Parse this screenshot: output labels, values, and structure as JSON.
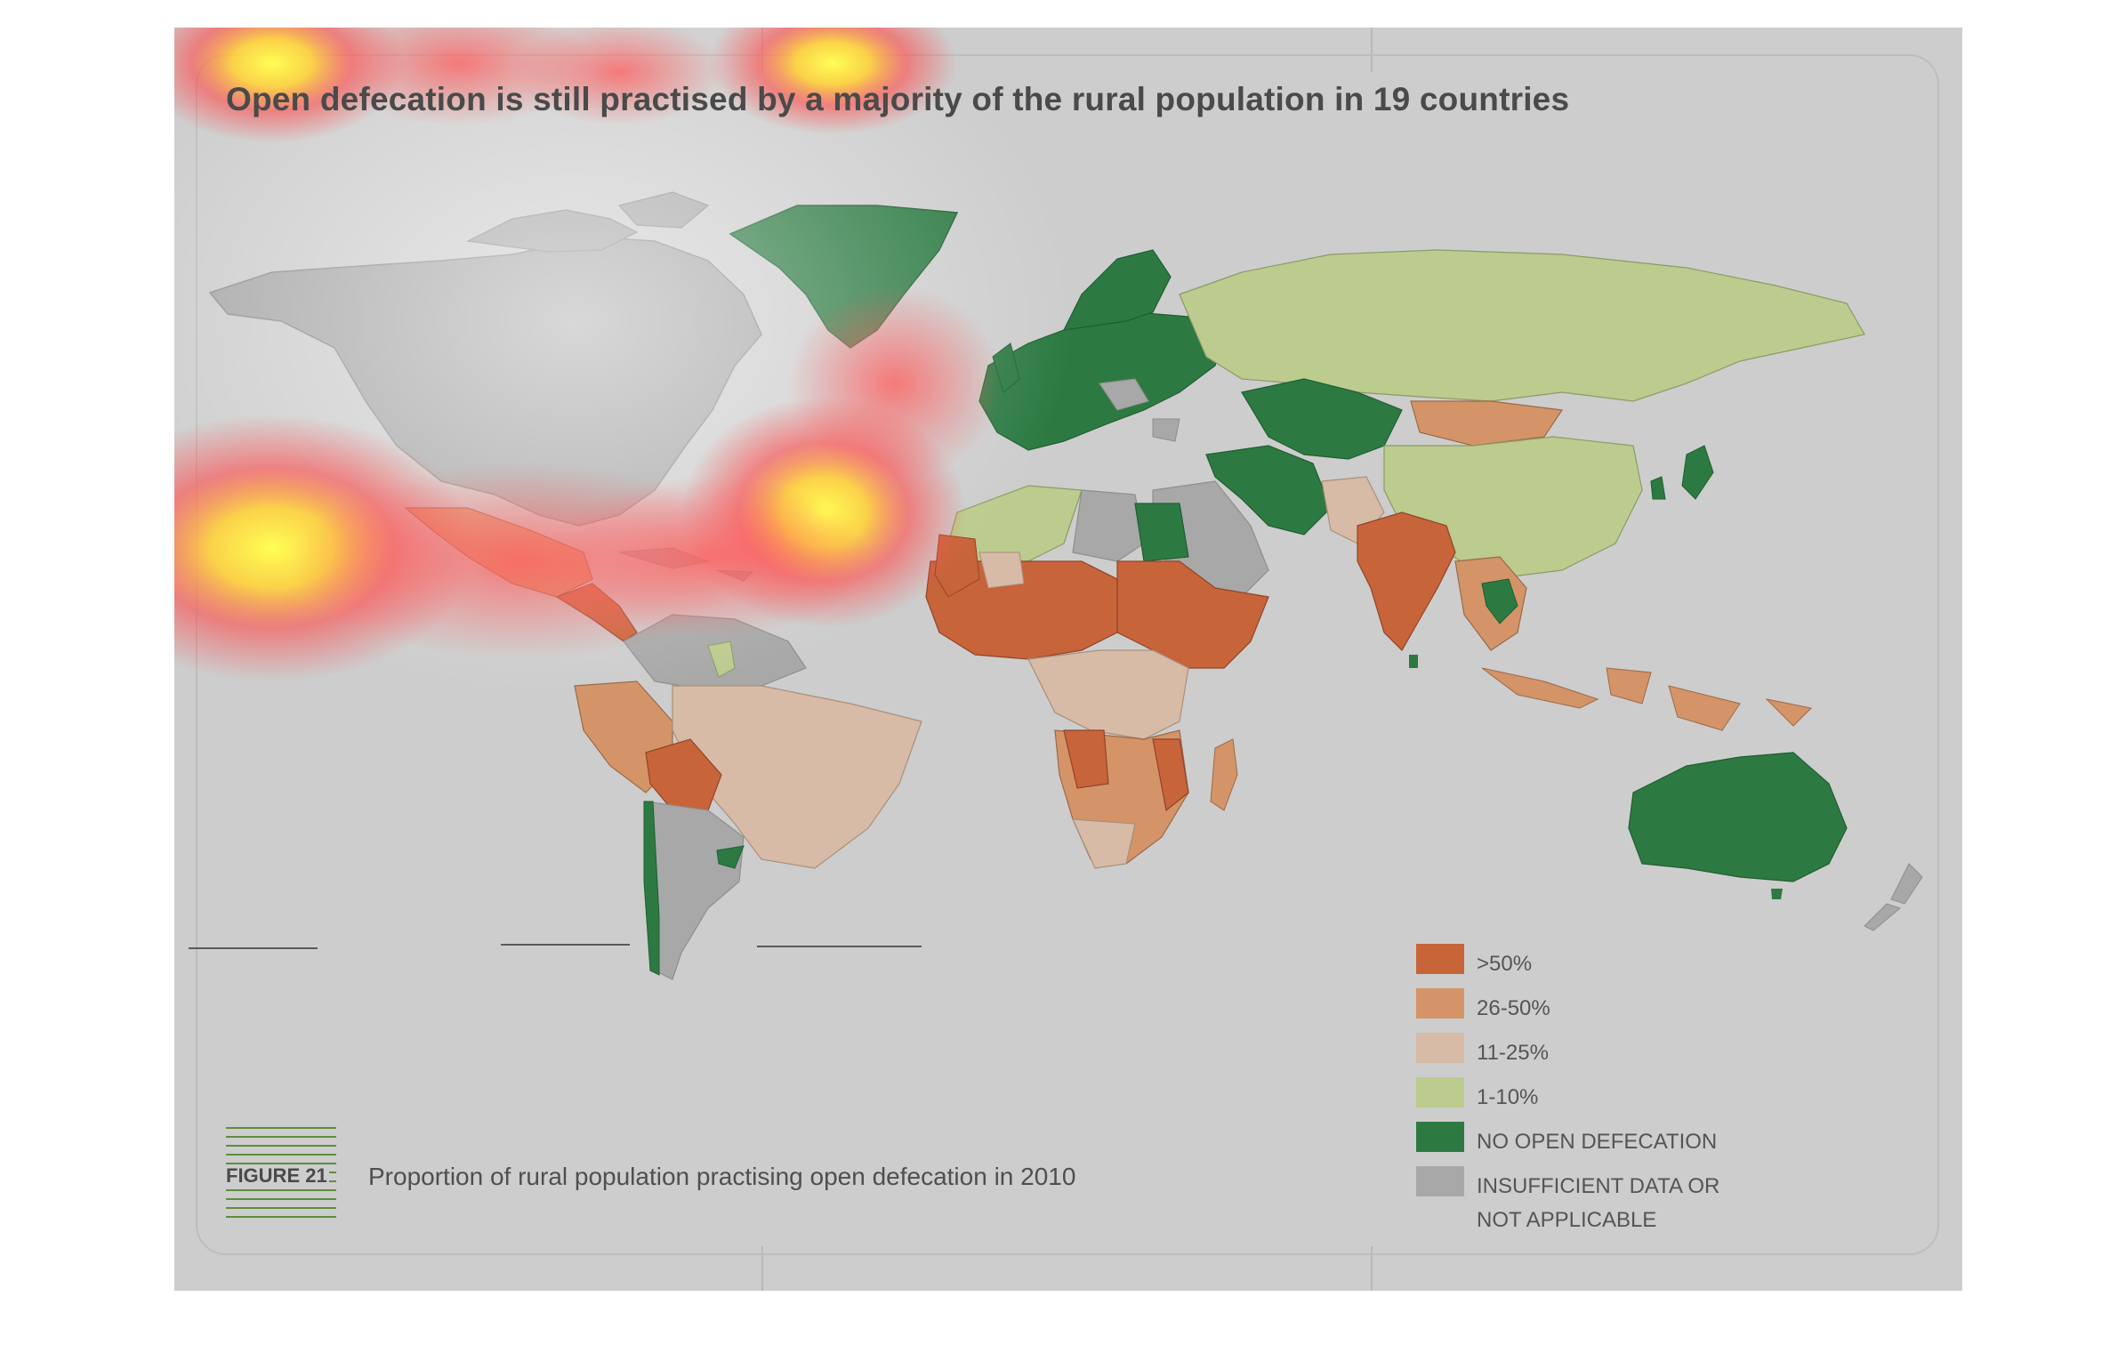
{
  "title": "Open defecation is still practised by a majority of the rural population in 19 countries",
  "figure": {
    "label": "FIGURE 21",
    "caption": "Proportion of rural population practising open defecation in 2010"
  },
  "legend": [
    {
      "label": ">50%",
      "color": "#c8643a"
    },
    {
      "label": "26-50%",
      "color": "#d49468"
    },
    {
      "label": "11-25%",
      "color": "#d7bba6"
    },
    {
      "label": "1-10%",
      "color": "#bccb8e"
    },
    {
      "label": "NO OPEN DEFECATION",
      "color": "#2c7a42"
    },
    {
      "label": "INSUFFICIENT DATA OR",
      "label2": "NOT APPLICABLE",
      "color": "#a8a8a8"
    }
  ],
  "colors": {
    "background": "#cdcdcd",
    "gt50": "#c8643a",
    "p26_50": "#d49468",
    "p11_25": "#d7bba6",
    "p1_10": "#bccb8e",
    "none": "#2c7a42",
    "insufficient": "#a8a8a8"
  }
}
